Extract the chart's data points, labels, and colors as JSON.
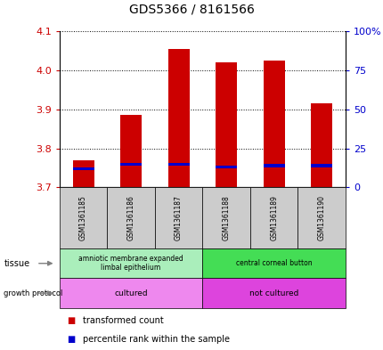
{
  "title": "GDS5366 / 8161566",
  "samples": [
    "GSM1361185",
    "GSM1361186",
    "GSM1361187",
    "GSM1361188",
    "GSM1361189",
    "GSM1361190"
  ],
  "transformed_counts": [
    3.77,
    3.885,
    4.055,
    4.02,
    4.025,
    3.915
  ],
  "percentile_values": [
    3.745,
    3.755,
    3.755,
    3.748,
    3.752,
    3.752
  ],
  "ylim": [
    3.7,
    4.1
  ],
  "yticks_left": [
    3.7,
    3.8,
    3.9,
    4.0,
    4.1
  ],
  "yticks_right": [
    0,
    25,
    50,
    75,
    100
  ],
  "yticks_right_labels": [
    "0",
    "25",
    "50",
    "75",
    "100%"
  ],
  "bar_color": "#cc0000",
  "percentile_color": "#0000cc",
  "tissue_groups": [
    {
      "label": "amniotic membrane expanded\nlimbal epithelium",
      "start": 0,
      "end": 3,
      "color": "#aaeebb"
    },
    {
      "label": "central corneal button",
      "start": 3,
      "end": 6,
      "color": "#44dd55"
    }
  ],
  "growth_groups": [
    {
      "label": "cultured",
      "start": 0,
      "end": 3,
      "color": "#ee88ee"
    },
    {
      "label": "not cultured",
      "start": 3,
      "end": 6,
      "color": "#dd44dd"
    }
  ],
  "legend_items": [
    {
      "color": "#cc0000",
      "label": "transformed count"
    },
    {
      "color": "#0000cc",
      "label": "percentile rank within the sample"
    }
  ],
  "tick_label_color_left": "#cc0000",
  "tick_label_color_right": "#0000cc"
}
